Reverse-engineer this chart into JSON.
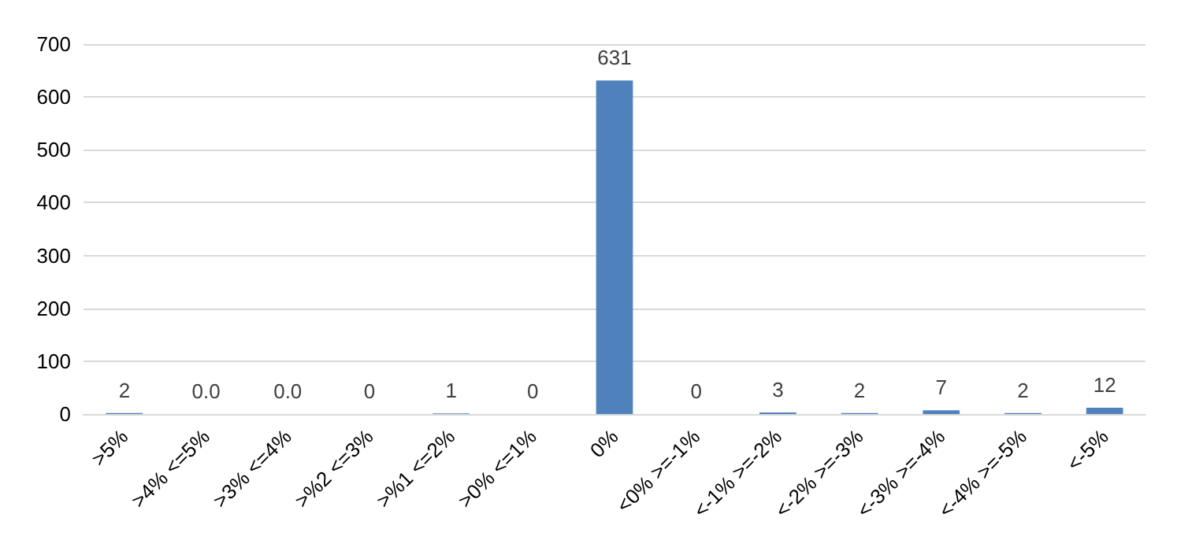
{
  "chart_data": {
    "type": "bar",
    "categories": [
      ">5%",
      ">4% <=5%",
      ">3% <=4%",
      ">%2 <=3%",
      ">%1 <=2%",
      ">0% <=1%",
      "0%",
      "<0% >=-1%",
      "<-1% >=-2%",
      "<-2% >=-3%",
      "<-3% >=-4%",
      "<-4% >=-5%",
      "<-5%"
    ],
    "values": [
      2,
      0,
      0,
      0,
      1,
      0,
      631,
      0,
      3,
      2,
      7,
      2,
      12
    ],
    "value_labels": [
      "2",
      "0.0",
      "0.0",
      "0",
      "1",
      "0",
      "631",
      "0",
      "3",
      "2",
      "7",
      "2",
      "12"
    ],
    "color": "#4f81bd",
    "ylim": [
      0,
      700
    ],
    "yticks": [
      0,
      100,
      200,
      300,
      400,
      500,
      600,
      700
    ],
    "grid": "y"
  }
}
